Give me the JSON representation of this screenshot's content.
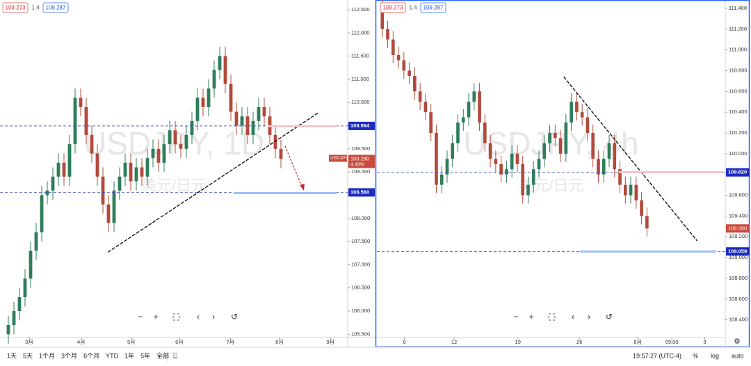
{
  "chart_data": [
    {
      "type": "candlestick",
      "title": "USDJPY, 1D",
      "subtitle": "美元/日元",
      "legend": [
        "109.273",
        "1.4",
        "109.287"
      ],
      "open": [
        105.5,
        105.7,
        106.0,
        106.3,
        106.7,
        107.3,
        107.7,
        108.5,
        108.6,
        108.9,
        109.2,
        108.9,
        109.6,
        110.6,
        110.4,
        109.8,
        109.4,
        108.9,
        108.3,
        107.9,
        108.6,
        108.9,
        109.2,
        108.8,
        109.1,
        108.9,
        109.3,
        109.5,
        109.2,
        109.6,
        109.9,
        109.6,
        109.5,
        109.8,
        110.1,
        110.6,
        110.4,
        110.8,
        111.2,
        111.5,
        110.9,
        110.3,
        110.0,
        110.2,
        109.8,
        110.1,
        110.4,
        110.2,
        109.8,
        109.5
      ],
      "high": [
        105.9,
        106.2,
        106.5,
        106.9,
        107.5,
        107.9,
        108.7,
        108.8,
        109.1,
        109.4,
        109.4,
        109.8,
        110.8,
        110.8,
        110.6,
        110.0,
        109.6,
        109.1,
        108.5,
        108.8,
        109.1,
        109.4,
        109.4,
        109.3,
        109.3,
        109.5,
        109.7,
        109.7,
        109.8,
        110.1,
        110.1,
        109.8,
        110.0,
        110.3,
        110.8,
        110.8,
        111.0,
        111.4,
        111.7,
        111.7,
        111.1,
        110.5,
        110.4,
        110.4,
        110.3,
        110.6,
        110.6,
        110.4,
        110.0,
        109.7
      ],
      "low": [
        105.3,
        105.5,
        105.8,
        106.1,
        106.5,
        107.1,
        107.5,
        108.3,
        108.4,
        108.7,
        108.7,
        108.7,
        109.4,
        110.2,
        109.6,
        109.2,
        108.7,
        108.1,
        107.7,
        107.7,
        108.4,
        108.7,
        108.6,
        108.6,
        108.7,
        108.7,
        109.1,
        109.0,
        109.0,
        109.4,
        109.4,
        109.3,
        109.3,
        109.6,
        109.9,
        110.2,
        110.2,
        110.6,
        111.0,
        110.7,
        110.1,
        109.8,
        109.8,
        109.6,
        109.6,
        109.9,
        110.0,
        109.6,
        109.3,
        109.08
      ],
      "close": [
        105.7,
        106.0,
        106.3,
        106.7,
        107.3,
        107.7,
        108.5,
        108.6,
        108.9,
        109.2,
        108.9,
        109.6,
        110.6,
        110.4,
        109.8,
        109.4,
        108.9,
        108.3,
        107.9,
        108.6,
        108.9,
        109.2,
        108.8,
        109.1,
        108.9,
        109.3,
        109.5,
        109.2,
        109.6,
        109.9,
        109.6,
        109.5,
        109.8,
        110.1,
        110.6,
        110.4,
        110.8,
        111.2,
        111.5,
        110.9,
        110.3,
        110.0,
        110.2,
        109.8,
        110.1,
        110.4,
        110.2,
        109.8,
        109.5,
        109.28
      ],
      "up_color": "#2e7d5b",
      "down_color": "#b24a3c",
      "xlim": [
        -1.5,
        61
      ],
      "xticks": [
        {
          "value": 3.75,
          "label": "3月"
        },
        {
          "value": 13.1,
          "label": "4月"
        },
        {
          "value": 22.1,
          "label": "5月"
        },
        {
          "value": 30.75,
          "label": "6月"
        },
        {
          "value": 39.9,
          "label": "7月"
        },
        {
          "value": 48.75,
          "label": "8月"
        },
        {
          "value": 57.9,
          "label": "9月"
        }
      ],
      "ylim": [
        105.43,
        112.71
      ],
      "yticks": [
        {
          "value": 105.5,
          "label": "105.500"
        },
        {
          "value": 106,
          "label": "106.000"
        },
        {
          "value": 106.5,
          "label": "106.500"
        },
        {
          "value": 107,
          "label": "107.000"
        },
        {
          "value": 107.5,
          "label": "107.500"
        },
        {
          "value": 108,
          "label": "108.000"
        },
        {
          "value": 108.5,
          "label": "108.500"
        },
        {
          "value": 109,
          "label": "109.000"
        },
        {
          "value": 109.5,
          "label": "109.500"
        },
        {
          "value": 110,
          "label": "110.000"
        },
        {
          "value": 110.5,
          "label": "110.500"
        },
        {
          "value": 111,
          "label": "111.000"
        },
        {
          "value": 111.5,
          "label": "111.500"
        },
        {
          "value": 112,
          "label": "112.000"
        },
        {
          "value": 112.5,
          "label": "112.500"
        }
      ],
      "levels": [
        {
          "value": 109.994,
          "label": "109.994"
        },
        {
          "value": 108.56,
          "label": "108.560"
        }
      ],
      "trendlines": [
        {
          "x": [
            17.9,
            55.75
          ],
          "y": [
            107.27,
            110.28
          ]
        }
      ],
      "price_tag": {
        "symbol": "USDJPY",
        "value": 109.28,
        "label": "109.280",
        "change": "4.49%"
      }
    },
    {
      "type": "candlestick",
      "title": "USDJPY, 4h",
      "subtitle": "美元/日元",
      "legend": [
        "109.273",
        "1.4",
        "109.287"
      ],
      "open": [
        111.4,
        111.2,
        111.1,
        110.95,
        110.9,
        110.8,
        110.75,
        110.6,
        110.5,
        110.4,
        110.2,
        109.7,
        109.8,
        109.95,
        110.1,
        110.3,
        110.35,
        110.5,
        110.6,
        110.3,
        110.1,
        109.95,
        109.9,
        109.8,
        109.85,
        110.0,
        109.9,
        109.6,
        109.7,
        109.85,
        109.95,
        110.1,
        110.2,
        110.15,
        110.0,
        110.3,
        110.5,
        110.4,
        110.35,
        110.2,
        109.95,
        109.8,
        109.95,
        110.1,
        109.85,
        109.7,
        109.6,
        109.7,
        109.55,
        109.4
      ],
      "high": [
        111.48,
        111.28,
        111.18,
        111.03,
        110.98,
        110.88,
        110.83,
        110.68,
        110.58,
        110.48,
        110.28,
        109.88,
        110.03,
        110.18,
        110.38,
        110.43,
        110.58,
        110.68,
        110.68,
        110.38,
        110.18,
        110.03,
        109.98,
        109.93,
        110.08,
        110.08,
        109.98,
        109.78,
        109.93,
        110.03,
        110.18,
        110.28,
        110.28,
        110.23,
        110.38,
        110.58,
        110.58,
        110.48,
        110.43,
        110.28,
        110.03,
        110.03,
        110.18,
        110.18,
        109.93,
        109.78,
        109.78,
        109.78,
        109.63,
        109.48
      ],
      "low": [
        111.12,
        111.02,
        110.87,
        110.82,
        110.72,
        110.67,
        110.52,
        110.42,
        110.32,
        110.12,
        109.62,
        109.62,
        109.72,
        109.87,
        110.02,
        110.22,
        110.27,
        110.42,
        110.22,
        110.02,
        109.87,
        109.82,
        109.72,
        109.72,
        109.77,
        109.82,
        109.52,
        109.52,
        109.62,
        109.77,
        109.87,
        110.02,
        110.07,
        109.92,
        109.92,
        110.22,
        110.32,
        110.27,
        110.12,
        109.87,
        109.72,
        109.72,
        109.87,
        109.77,
        109.62,
        109.52,
        109.52,
        109.47,
        109.32,
        109.2
      ],
      "close": [
        111.2,
        111.1,
        110.95,
        110.9,
        110.8,
        110.75,
        110.6,
        110.5,
        110.4,
        110.2,
        109.7,
        109.8,
        109.95,
        110.1,
        110.3,
        110.35,
        110.5,
        110.6,
        110.3,
        110.1,
        109.95,
        109.9,
        109.8,
        109.85,
        110.0,
        109.9,
        109.6,
        109.7,
        109.85,
        109.95,
        110.1,
        110.2,
        110.15,
        110.0,
        110.3,
        110.5,
        110.4,
        110.35,
        110.2,
        109.95,
        109.8,
        109.95,
        110.1,
        109.85,
        109.7,
        109.6,
        109.7,
        109.55,
        109.4,
        109.28
      ],
      "up_color": "#2e7d5b",
      "down_color": "#b24a3c",
      "xlim": [
        -1,
        63.5
      ],
      "xticks": [
        {
          "value": 4.1,
          "label": "6"
        },
        {
          "value": 13.3,
          "label": "12"
        },
        {
          "value": 25.1,
          "label": "19"
        },
        {
          "value": 36.5,
          "label": "26"
        },
        {
          "value": 47.3,
          "label": "8月"
        },
        {
          "value": 53.6,
          "label": "09:00"
        },
        {
          "value": 59.7,
          "label": "9"
        }
      ],
      "ylim": [
        108.23,
        111.48
      ],
      "yticks": [
        {
          "value": 108.4,
          "label": "108.400"
        },
        {
          "value": 108.6,
          "label": "108.600"
        },
        {
          "value": 108.8,
          "label": "108.800"
        },
        {
          "value": 109,
          "label": "109.000"
        },
        {
          "value": 109.2,
          "label": "109.200"
        },
        {
          "value": 109.4,
          "label": "109.400"
        },
        {
          "value": 109.6,
          "label": "109.600"
        },
        {
          "value": 109.8,
          "label": "109.800"
        },
        {
          "value": 110,
          "label": "110.000"
        },
        {
          "value": 110.2,
          "label": "110.200"
        },
        {
          "value": 110.4,
          "label": "110.400"
        },
        {
          "value": 110.6,
          "label": "110.600"
        },
        {
          "value": 110.8,
          "label": "110.800"
        },
        {
          "value": 111,
          "label": "111.000"
        },
        {
          "value": 111.2,
          "label": "111.200"
        },
        {
          "value": 111.4,
          "label": "111.400"
        }
      ],
      "levels": [
        {
          "value": 109.82,
          "label": "109.820"
        },
        {
          "value": 109.059,
          "label": "109.059"
        }
      ],
      "trendlines": [
        {
          "x": [
            33.6,
            58.3
          ],
          "y": [
            110.74,
            109.16
          ]
        }
      ],
      "price_tag": {
        "value": 109.28,
        "label": "109.280"
      }
    }
  ],
  "toolbar": {
    "ranges": [
      "1天",
      "5天",
      "1个月",
      "3个月",
      "6个月",
      "YTD",
      "1年",
      "5年",
      "全部"
    ],
    "clock": "19:57:27 (UTC-4)",
    "options": [
      "%",
      "log",
      "auto"
    ]
  }
}
